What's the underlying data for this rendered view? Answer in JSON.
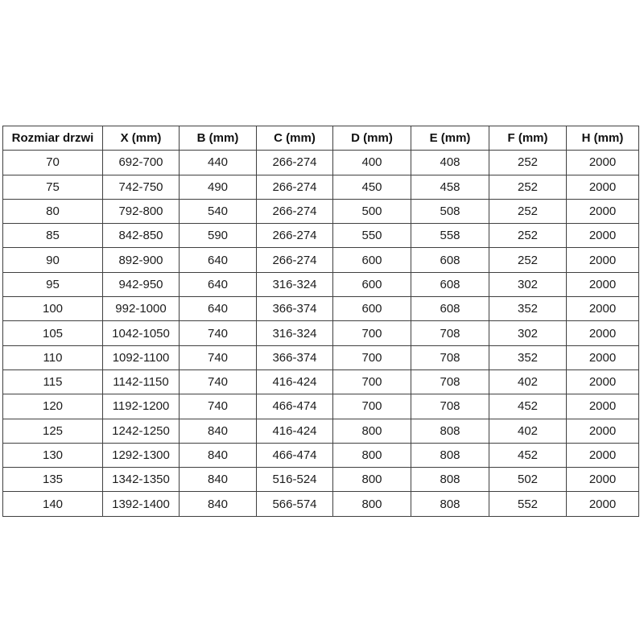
{
  "page": {
    "background_color": "#ffffff",
    "text_color": "#1c1c1c",
    "border_color": "#404040"
  },
  "chart_data": {
    "type": "table",
    "columns": [
      "Rozmiar drzwi",
      "X (mm)",
      "B (mm)",
      "C (mm)",
      "D (mm)",
      "E (mm)",
      "F (mm)",
      "H (mm)"
    ],
    "rows": [
      [
        "70",
        "692-700",
        "440",
        "266-274",
        "400",
        "408",
        "252",
        "2000"
      ],
      [
        "75",
        "742-750",
        "490",
        "266-274",
        "450",
        "458",
        "252",
        "2000"
      ],
      [
        "80",
        "792-800",
        "540",
        "266-274",
        "500",
        "508",
        "252",
        "2000"
      ],
      [
        "85",
        "842-850",
        "590",
        "266-274",
        "550",
        "558",
        "252",
        "2000"
      ],
      [
        "90",
        "892-900",
        "640",
        "266-274",
        "600",
        "608",
        "252",
        "2000"
      ],
      [
        "95",
        "942-950",
        "640",
        "316-324",
        "600",
        "608",
        "302",
        "2000"
      ],
      [
        "100",
        "992-1000",
        "640",
        "366-374",
        "600",
        "608",
        "352",
        "2000"
      ],
      [
        "105",
        "1042-1050",
        "740",
        "316-324",
        "700",
        "708",
        "302",
        "2000"
      ],
      [
        "110",
        "1092-1100",
        "740",
        "366-374",
        "700",
        "708",
        "352",
        "2000"
      ],
      [
        "115",
        "1142-1150",
        "740",
        "416-424",
        "700",
        "708",
        "402",
        "2000"
      ],
      [
        "120",
        "1192-1200",
        "740",
        "466-474",
        "700",
        "708",
        "452",
        "2000"
      ],
      [
        "125",
        "1242-1250",
        "840",
        "416-424",
        "800",
        "808",
        "402",
        "2000"
      ],
      [
        "130",
        "1292-1300",
        "840",
        "466-474",
        "800",
        "808",
        "452",
        "2000"
      ],
      [
        "135",
        "1342-1350",
        "840",
        "516-524",
        "800",
        "808",
        "502",
        "2000"
      ],
      [
        "140",
        "1392-1400",
        "840",
        "566-574",
        "800",
        "808",
        "552",
        "2000"
      ]
    ],
    "title": "",
    "layout_hints": {
      "header_row_bold": true,
      "cell_alignment": "center",
      "grid": "all-borders"
    }
  }
}
